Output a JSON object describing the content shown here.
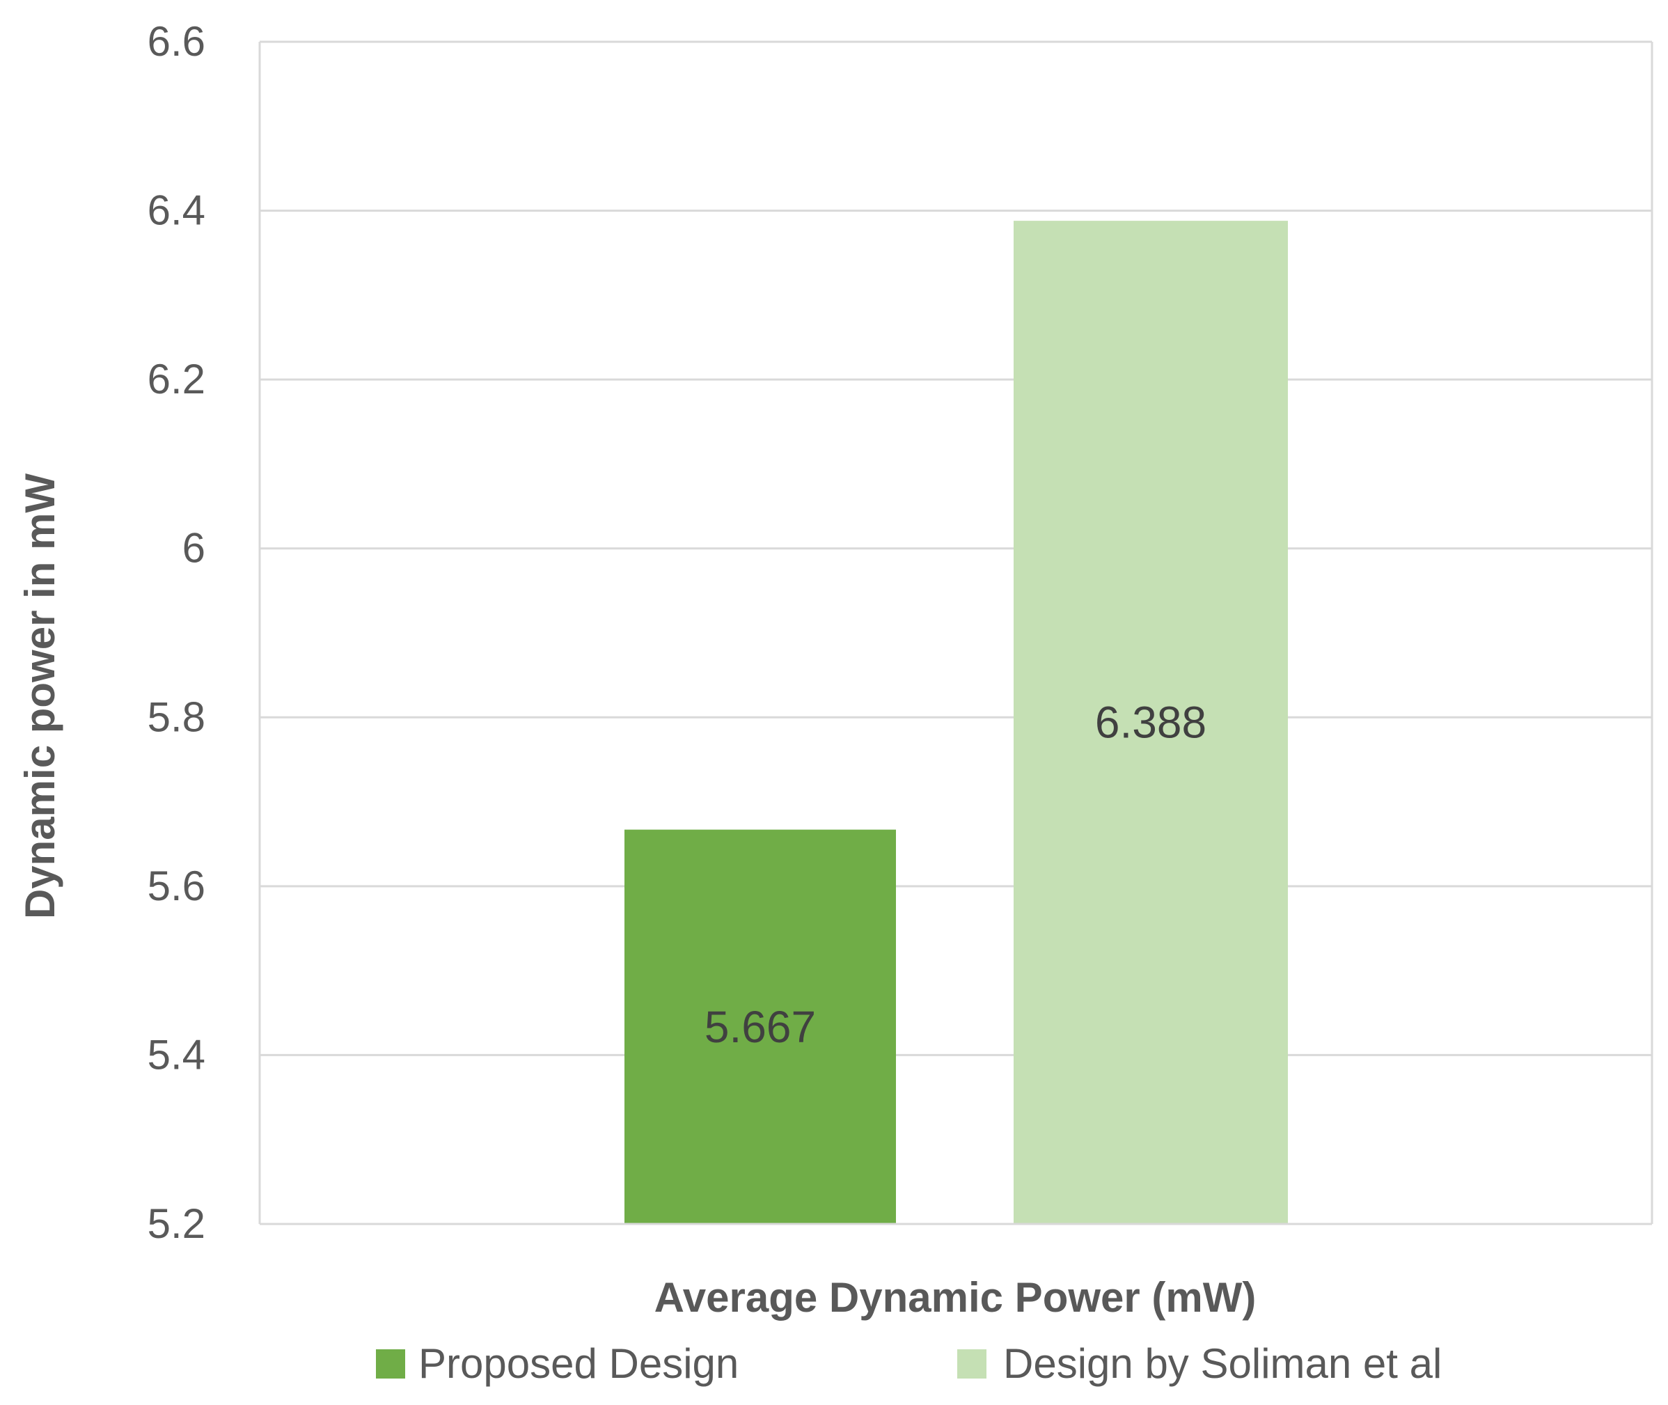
{
  "chart_data": {
    "type": "bar",
    "title": "",
    "xlabel": "Average Dynamic Power (mW)",
    "ylabel": "Dynamic power in mW",
    "ylim": [
      5.2,
      6.6
    ],
    "yticks": [
      "5.2",
      "5.4",
      "5.6",
      "5.8",
      "6",
      "6.2",
      "6.4",
      "6.6"
    ],
    "grid": true,
    "legend_position": "bottom",
    "categories": [
      "Average Dynamic Power (mW)"
    ],
    "series": [
      {
        "name": "Proposed Design",
        "values": [
          5.667
        ],
        "label": "5.667",
        "color": "#70ad47"
      },
      {
        "name": "Design by Soliman et al",
        "values": [
          6.388
        ],
        "label": "6.388",
        "color": "#c5e0b4"
      }
    ],
    "colors": {
      "grid": "#d9d9d9",
      "tick_text": "#595959",
      "axis_title": "#595959",
      "data_label": "#404040"
    }
  }
}
